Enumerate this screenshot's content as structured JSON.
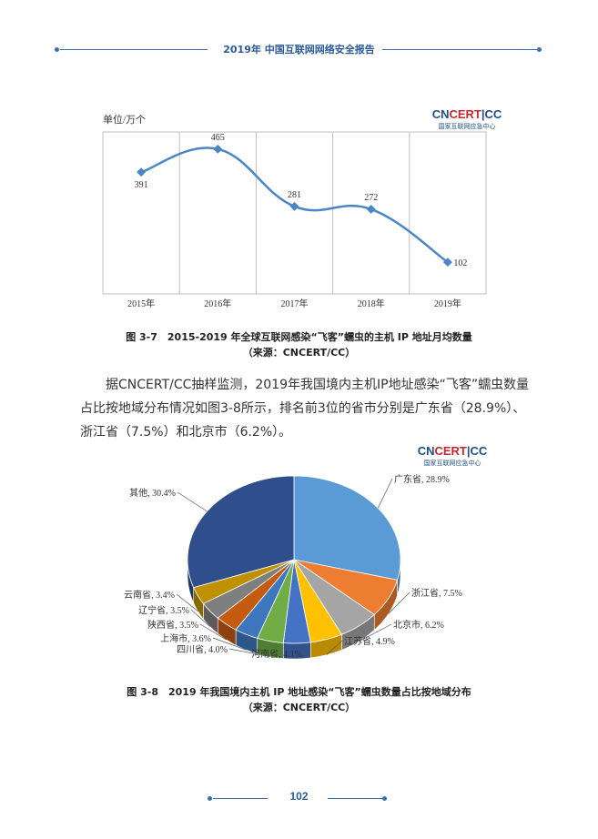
{
  "header": {
    "title": "2019年 中国互联网网络安全报告"
  },
  "logo": {
    "main_a": "CN",
    "main_b": "CERT",
    "main_c": "CC",
    "sub": "国家互联网应急中心"
  },
  "figure1": {
    "caption_line1": "图 3-7　2015-2019 年全球互联网感染“飞客”蠕虫的主机 IP 地址月均数量",
    "caption_line2": "（来源：CNCERT/CC）",
    "chart_data": {
      "type": "line",
      "ylabel": "单位/万个",
      "categories": [
        "2015年",
        "2016年",
        "2017年",
        "2018年",
        "2019年"
      ],
      "values": [
        391,
        465,
        281,
        272,
        102
      ],
      "ylim": [
        0,
        520
      ],
      "color": "#4a86c5",
      "grid": "vertical"
    }
  },
  "paragraph": "据CNCERT/CC抽样监测，2019年我国境内主机IP地址感染“飞客”蠕虫数量占比按地域分布情况如图3-8所示，排名前3位的省市分别是广东省（28.9%）、浙江省（7.5%）和北京市（6.2%）。",
  "figure2": {
    "caption_line1": "图 3-8　2019 年我国境内主机 IP 地址感染“飞客”蠕虫数量占比按地域分布",
    "caption_line2": "（来源：CNCERT/CC）",
    "chart_data": {
      "type": "pie",
      "labels": [
        "广东省",
        "浙江省",
        "北京市",
        "江苏省",
        "河南省",
        "四川省",
        "上海市",
        "陕西省",
        "辽宁省",
        "云南省",
        "其他"
      ],
      "values": [
        28.9,
        7.5,
        6.2,
        4.9,
        4.1,
        4.0,
        3.6,
        3.5,
        3.5,
        3.4,
        30.4
      ],
      "value_labels": [
        "广东省, 28.9%",
        "浙江省, 7.5%",
        "北京市, 6.2%",
        "江苏省, 4.9%",
        "河南省, 4.1%",
        "四川省, 4.0%",
        "上海市, 3.6%",
        "陕西省, 3.5%",
        "辽宁省, 3.5%",
        "云南省, 3.4%",
        "其他, 30.4%"
      ],
      "colors": [
        "#5b9bd5",
        "#ed7d31",
        "#a5a5a5",
        "#ffc000",
        "#4472c4",
        "#70ad47",
        "#3f77bf",
        "#c55a11",
        "#7f7f7f",
        "#bf9000",
        "#2f4f8c"
      ]
    }
  },
  "footer": {
    "page_number": "102"
  }
}
